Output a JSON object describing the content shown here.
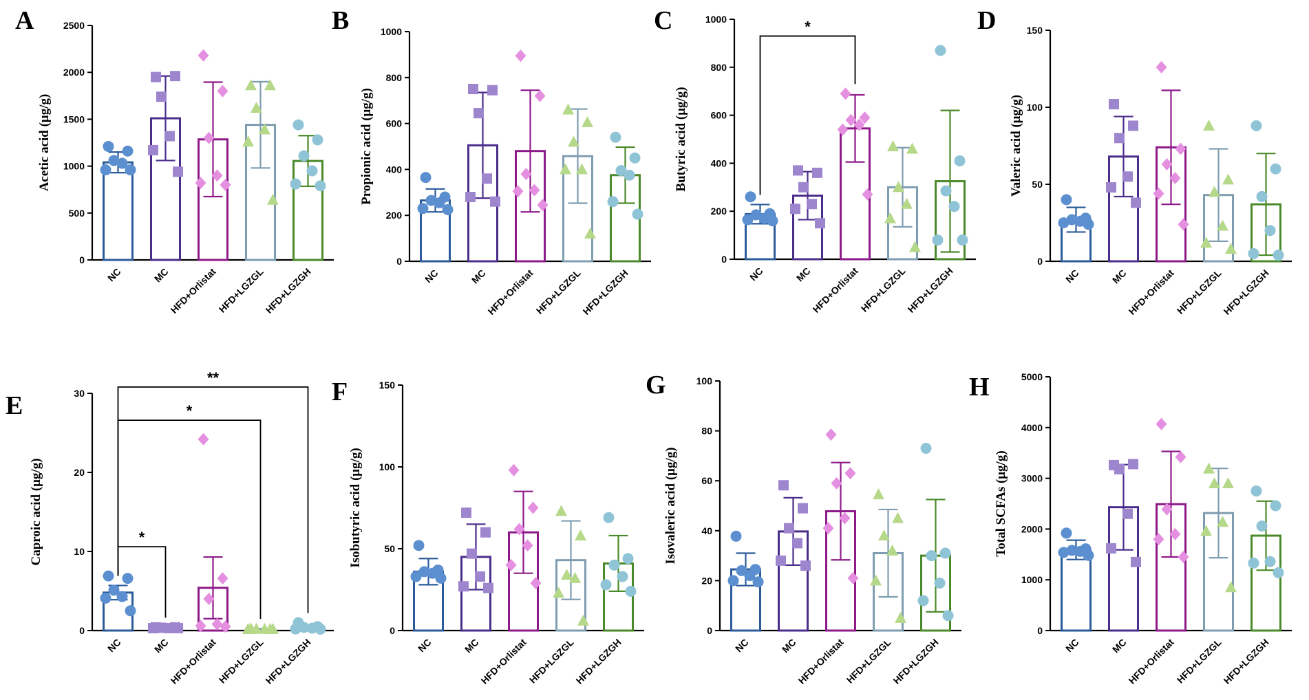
{
  "figure": {
    "groups": [
      "NC",
      "MC",
      "HFD+Orlistat",
      "HFD+LGZGL",
      "HFD+LGZGH"
    ],
    "group_colors": [
      "#2b5b9a",
      "#4b2d8c",
      "#8e1a8a",
      "#7f9db0",
      "#4a8a2a"
    ],
    "point_colors": [
      "#5b8fcf",
      "#9e86cf",
      "#e58fe0",
      "#b5d889",
      "#8fc4d6"
    ],
    "markers": [
      "circle",
      "square",
      "diamond",
      "triangle",
      "circle"
    ]
  },
  "chart_data": [
    {
      "type": "bar",
      "panel": "A",
      "ylabel": "Acetic acid (μg/g)",
      "ylim": [
        0,
        2500
      ],
      "yticks": [
        0,
        500,
        1000,
        1500,
        2000,
        2500
      ],
      "categories": [
        "NC",
        "MC",
        "HFD+Orlistat",
        "HFD+LGZGL",
        "HFD+LGZGH"
      ],
      "means": [
        1040,
        1510,
        1285,
        1440,
        1055
      ],
      "sd": [
        110,
        450,
        610,
        460,
        270
      ],
      "points": [
        [
          1210,
          1160,
          1060,
          1030,
          960,
          960
        ],
        [
          1950,
          1960,
          1740,
          1320,
          1170,
          940
        ],
        [
          2180,
          1800,
          1300,
          900,
          820,
          800
        ],
        [
          1860,
          1860,
          1620,
          1390,
          1260,
          640
        ],
        [
          1440,
          1280,
          1110,
          950,
          810,
          790
        ]
      ],
      "comparisons": []
    },
    {
      "type": "bar",
      "panel": "B",
      "ylabel": "Propionic acid (μg/g)",
      "ylim": [
        0,
        1000
      ],
      "yticks": [
        0,
        200,
        400,
        600,
        800,
        1000
      ],
      "categories": [
        "NC",
        "MC",
        "HFD+Orlistat",
        "HFD+LGZGL",
        "HFD+LGZGH"
      ],
      "means": [
        265,
        505,
        480,
        458,
        375
      ],
      "sd": [
        50,
        230,
        265,
        205,
        122
      ],
      "points": [
        [
          365,
          280,
          265,
          255,
          230,
          225
        ],
        [
          750,
          745,
          645,
          360,
          280,
          260
        ],
        [
          895,
          720,
          380,
          310,
          305,
          245
        ],
        [
          660,
          605,
          520,
          400,
          400,
          120
        ],
        [
          540,
          450,
          395,
          375,
          260,
          205
        ]
      ],
      "comparisons": []
    },
    {
      "type": "bar",
      "panel": "C",
      "ylabel": "Butyric acid (μg/g)",
      "ylim": [
        0,
        1000
      ],
      "yticks": [
        0,
        200,
        400,
        600,
        800,
        1000
      ],
      "categories": [
        "NC",
        "MC",
        "HFD+Orlistat",
        "HFD+LGZGL",
        "HFD+LGZGH"
      ],
      "means": [
        188,
        265,
        545,
        300,
        325
      ],
      "sd": [
        40,
        100,
        140,
        165,
        295
      ],
      "points": [
        [
          260,
          190,
          185,
          170,
          165,
          160
        ],
        [
          370,
          360,
          300,
          230,
          210,
          150
        ],
        [
          690,
          590,
          580,
          560,
          540,
          270
        ],
        [
          470,
          460,
          300,
          230,
          170,
          50
        ],
        [
          870,
          410,
          285,
          220,
          80,
          80
        ]
      ],
      "comparisons": [
        {
          "from": 0,
          "to": 2,
          "level": 930,
          "label": "*"
        }
      ]
    },
    {
      "type": "bar",
      "panel": "D",
      "ylabel": "Valeric acid (μg/g)",
      "ylim": [
        0,
        150
      ],
      "yticks": [
        0,
        50,
        100,
        150
      ],
      "categories": [
        "NC",
        "MC",
        "HFD+Orlistat",
        "HFD+LGZGL",
        "HFD+LGZGH"
      ],
      "means": [
        27,
        68,
        74,
        43,
        37
      ],
      "sd": [
        8,
        26,
        37,
        30,
        33
      ],
      "points": [
        [
          40,
          28,
          27,
          26,
          25,
          24
        ],
        [
          102,
          88,
          80,
          55,
          48,
          38
        ],
        [
          126,
          73,
          63,
          54,
          44,
          24
        ],
        [
          88,
          53,
          45,
          23,
          12,
          8
        ],
        [
          88,
          60,
          42,
          20,
          5,
          4
        ]
      ],
      "comparisons": []
    },
    {
      "type": "bar",
      "panel": "E",
      "ylabel": "Caproic acid (μg/g)",
      "ylim": [
        0,
        30
      ],
      "yticks": [
        0,
        10,
        20,
        30
      ],
      "categories": [
        "NC",
        "MC",
        "HFD+Orlistat",
        "HFD+LGZGL",
        "HFD+LGZGH"
      ],
      "means": [
        4.8,
        0.35,
        5.4,
        0.2,
        0.4
      ],
      "sd": [
        0.9,
        0.1,
        3.9,
        0.05,
        0.3
      ],
      "points": [
        [
          6.9,
          6.6,
          5.1,
          4.3,
          4.1,
          2.5
        ],
        [
          0.4,
          0.4,
          0.35,
          0.3,
          0.3,
          0.3
        ],
        [
          24.2,
          6.6,
          4.0,
          0.8,
          0.6,
          0.5
        ],
        [
          0.25,
          0.2,
          0.2,
          0.2,
          0.15,
          0.15
        ],
        [
          1.0,
          0.5,
          0.4,
          0.3,
          0.2,
          0.1
        ]
      ],
      "comparisons": [
        {
          "from": 0,
          "to": 1,
          "level": 10.6,
          "label": "*"
        },
        {
          "from": 0,
          "to": 3,
          "level": 26.6,
          "label": "*"
        },
        {
          "from": 0,
          "to": 4,
          "level": 30.8,
          "label": "**"
        }
      ]
    },
    {
      "type": "bar",
      "panel": "F",
      "ylabel": "Isobutyric acid (μg/g)",
      "ylim": [
        0,
        150
      ],
      "yticks": [
        0,
        50,
        100,
        150
      ],
      "categories": [
        "NC",
        "MC",
        "HFD+Orlistat",
        "HFD+LGZGL",
        "HFD+LGZGH"
      ],
      "means": [
        36,
        45,
        60,
        43,
        41
      ],
      "sd": [
        8,
        20,
        25,
        24,
        17
      ],
      "points": [
        [
          52,
          37,
          36,
          35,
          33,
          32
        ],
        [
          72,
          60,
          47,
          33,
          27,
          26
        ],
        [
          98,
          75,
          62,
          52,
          40,
          29
        ],
        [
          73,
          58,
          34,
          32,
          23,
          6
        ],
        [
          69,
          44,
          40,
          33,
          28,
          24
        ]
      ],
      "comparisons": []
    },
    {
      "type": "bar",
      "panel": "G",
      "ylabel": "Isovaleric acid (μg/g)",
      "ylim": [
        0,
        100
      ],
      "yticks": [
        0,
        20,
        40,
        60,
        80,
        100
      ],
      "categories": [
        "NC",
        "MC",
        "HFD+Orlistat",
        "HFD+LGZGL",
        "HFD+LGZGH"
      ],
      "means": [
        24.5,
        39.7,
        47.8,
        31,
        30
      ],
      "sd": [
        6.5,
        13.5,
        19.5,
        17.5,
        22.5
      ],
      "points": [
        [
          37.8,
          24.5,
          24,
          22,
          20,
          19.5
        ],
        [
          58.2,
          49,
          41,
          35,
          28,
          26
        ],
        [
          78.5,
          63,
          59,
          45,
          41,
          21
        ],
        [
          54.5,
          45,
          38,
          32,
          20,
          5
        ],
        [
          73,
          31,
          30,
          19,
          12,
          6
        ]
      ],
      "comparisons": []
    },
    {
      "type": "bar",
      "panel": "H",
      "ylabel": "Total SCFAs (μg/g)",
      "ylim": [
        0,
        5000
      ],
      "yticks": [
        0,
        1000,
        2000,
        3000,
        4000,
        5000
      ],
      "categories": [
        "NC",
        "MC",
        "HFD+Orlistat",
        "HFD+LGZGL",
        "HFD+LGZGH"
      ],
      "means": [
        1590,
        2430,
        2490,
        2315,
        1870
      ],
      "sd": [
        190,
        840,
        1040,
        880,
        680
      ],
      "points": [
        [
          1920,
          1610,
          1580,
          1560,
          1540,
          1480
        ],
        [
          3260,
          3280,
          3180,
          2300,
          1620,
          1350
        ],
        [
          4070,
          3420,
          2390,
          1900,
          1800,
          1450
        ],
        [
          3190,
          2900,
          2900,
          2140,
          1960,
          850
        ],
        [
          2750,
          2460,
          2060,
          1360,
          1330,
          1140
        ]
      ],
      "comparisons": []
    }
  ]
}
